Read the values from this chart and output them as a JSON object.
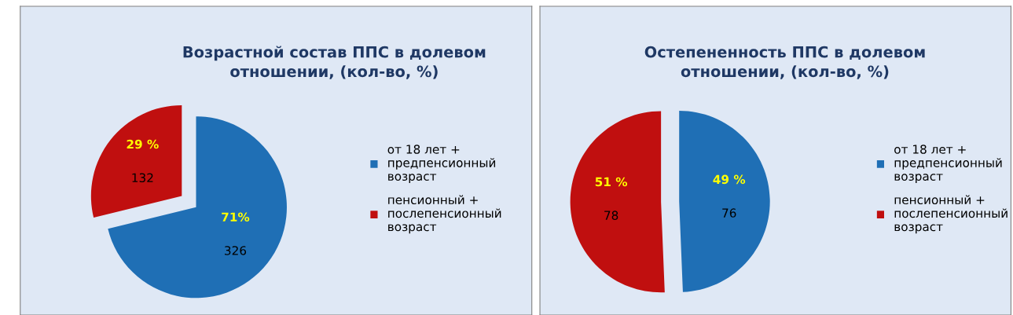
{
  "chart_data": [
    {
      "type": "pie",
      "title": "Возрастной состав ППС в долевом отношении, (кол-во, %)",
      "categories": [
        "от 18 лет + предпенсионный возраст",
        "пенсионный + послепенсионный возраст"
      ],
      "values": [
        326,
        132
      ],
      "colors": [
        "#1f6fb5",
        "#c00f0f"
      ],
      "data_labels": true,
      "annotations": [
        "71%",
        "29 %"
      ],
      "legend": "right"
    },
    {
      "type": "pie",
      "title": "Остепененность ППС в долевом отношении, (кол-во, %)",
      "categories": [
        "от 18 лет + предпенсионный возраст",
        "пенсионный + послепенсионный возраст"
      ],
      "values": [
        76,
        78
      ],
      "colors": [
        "#1f6fb5",
        "#c00f0f"
      ],
      "data_labels": true,
      "annotations": [
        "49 %",
        "51 %"
      ],
      "legend": "right"
    }
  ]
}
